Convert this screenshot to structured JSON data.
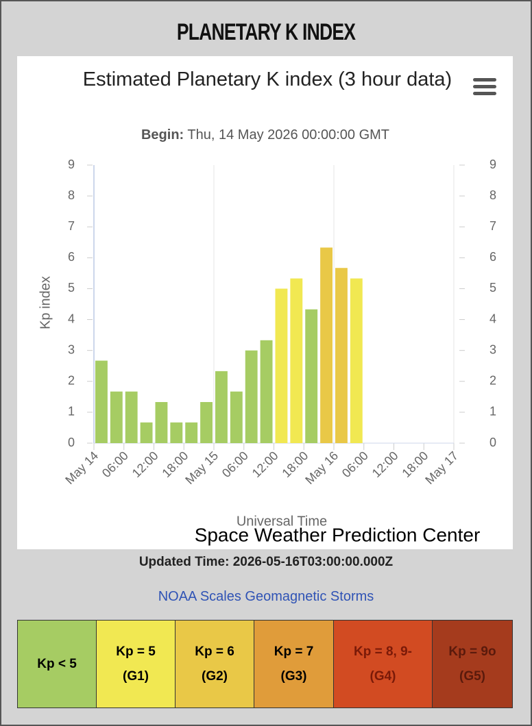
{
  "header": {
    "title": "PLANETARY K INDEX"
  },
  "chart_data": {
    "type": "bar",
    "title": "Estimated Planetary K index (3 hour data)",
    "begin_label": "Begin:",
    "begin_value": "Thu, 14 May 2026 00:00:00 GMT",
    "y_label": "Kp index",
    "x_label": "Universal Time",
    "credit": "Space Weather Prediction Center",
    "values": [
      2.67,
      1.67,
      1.67,
      0.67,
      1.33,
      0.67,
      0.67,
      1.33,
      2.33,
      1.67,
      3.0,
      3.33,
      5.0,
      5.33,
      4.33,
      6.33,
      5.67,
      5.33,
      null,
      null,
      null,
      null,
      null,
      null
    ],
    "colors": [
      "#a6cc63",
      "#a6cc63",
      "#a6cc63",
      "#a6cc63",
      "#a6cc63",
      "#a6cc63",
      "#a6cc63",
      "#a6cc63",
      "#a6cc63",
      "#a6cc63",
      "#a6cc63",
      "#a6cc63",
      "#f1e852",
      "#f1e852",
      "#a6cc63",
      "#e9c847",
      "#e9c847",
      "#f1e852",
      null,
      null,
      null,
      null,
      null,
      null
    ],
    "xticks": [
      "May 14",
      "06:00",
      "12:00",
      "18:00",
      "May 15",
      "06:00",
      "12:00",
      "18:00",
      "May 16",
      "06:00",
      "12:00",
      "18:00",
      "May 17"
    ],
    "ylim": [
      0,
      9
    ],
    "yticks": [
      0,
      1,
      2,
      3,
      4,
      5,
      6,
      7,
      8,
      9
    ],
    "grid": "x"
  },
  "updated": "Updated Time: 2026-05-16T03:00:00.000Z",
  "link": "NOAA Scales Geomagnetic Storms",
  "scale_table": {
    "cells": [
      {
        "label": "Kp < 5",
        "color": "#a6cc63",
        "text_color": "#000000"
      },
      {
        "label": "Kp = 5 (G1)",
        "color": "#f1e852",
        "text_color": "#000000"
      },
      {
        "label": "Kp = 6 (G2)",
        "color": "#e9c847",
        "text_color": "#000000"
      },
      {
        "label": "Kp = 7 (G3)",
        "color": "#e09c3a",
        "text_color": "#000000"
      },
      {
        "label": "Kp = 8, 9- (G4)",
        "color": "#d24b22",
        "text_color": "#7a1a08"
      },
      {
        "label": "Kp = 9o (G5)",
        "color": "#a53b1d",
        "text_color": "#5a1a0c"
      }
    ]
  }
}
